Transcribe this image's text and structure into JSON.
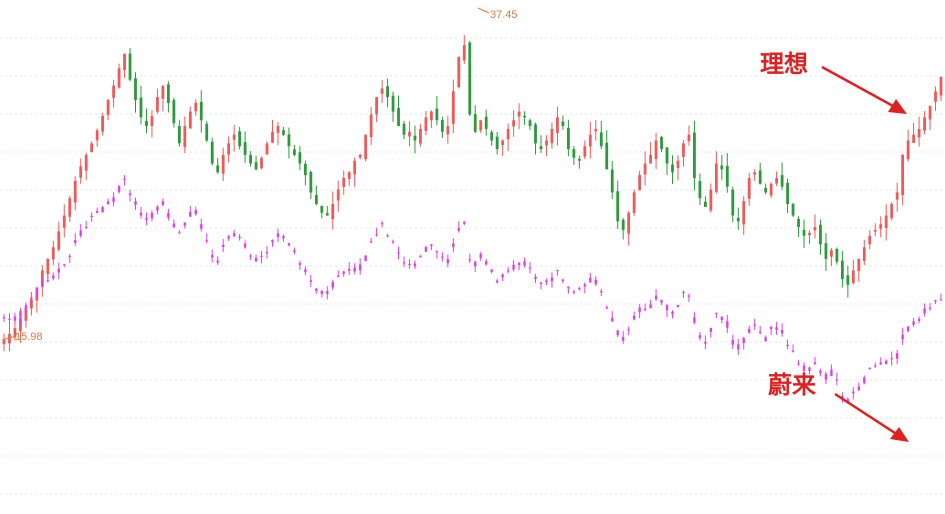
{
  "chart_data": {
    "type": "candlestick",
    "colors": {
      "lixiang_up": "#ee5a5a",
      "lixiang_down": "#2b9a3a",
      "nio": "#e040e8",
      "annotation": "#e02020",
      "price_label": "#e07a40"
    },
    "max_price_label": "37.45",
    "min_price_label": "15.98",
    "annotations": [
      {
        "text": "理想",
        "series": "lixiang"
      },
      {
        "text": "蔚来",
        "series": "nio"
      }
    ],
    "lixiang_closes": [
      16.0,
      16.4,
      16.8,
      17.5,
      18.2,
      18.8,
      19.6,
      20.8,
      21.6,
      22.4,
      23.5,
      24.6,
      25.8,
      27.0,
      28.0,
      28.8,
      29.6,
      30.5,
      31.5,
      32.6,
      33.6,
      34.8,
      35.8,
      34.0,
      32.6,
      31.4,
      30.8,
      31.5,
      32.8,
      33.6,
      32.4,
      31.0,
      29.6,
      30.8,
      31.8,
      32.4,
      31.2,
      29.8,
      28.2,
      27.6,
      28.8,
      29.6,
      30.2,
      29.4,
      28.8,
      28.2,
      27.8,
      28.6,
      29.6,
      30.4,
      30.8,
      30.2,
      29.4,
      28.8,
      28.2,
      27.4,
      26.2,
      25.4,
      24.8,
      24.6,
      25.4,
      26.4,
      27.2,
      27.6,
      28.4,
      28.8,
      30.2,
      31.6,
      32.8,
      33.4,
      32.8,
      31.8,
      30.8,
      30.2,
      30.4,
      29.8,
      30.6,
      31.4,
      31.8,
      31.2,
      30.4,
      30.8,
      33.2,
      35.6,
      36.4,
      31.6,
      30.4,
      31.2,
      30.6,
      29.8,
      29.2,
      29.8,
      30.6,
      31.2,
      31.8,
      31.4,
      30.8,
      29.6,
      29.2,
      29.8,
      30.6,
      31.4,
      30.8,
      29.2,
      28.6,
      28.4,
      29.4,
      30.2,
      30.6,
      29.4,
      27.8,
      26.2,
      24.2,
      23.6,
      24.8,
      26.2,
      27.4,
      28.2,
      28.8,
      29.8,
      29.2,
      28.2,
      27.6,
      28.4,
      29.6,
      30.2,
      27.2,
      25.8,
      25.2,
      26.4,
      28.2,
      27.8,
      26.6,
      24.6,
      24.2,
      25.6,
      27.2,
      27.6,
      26.8,
      26.2,
      26.8,
      27.2,
      26.6,
      25.4,
      24.6,
      23.8,
      23.2,
      23.4,
      23.8,
      22.6,
      21.6,
      22.2,
      21.4,
      20.2,
      19.8,
      20.8,
      21.6,
      22.4,
      23.2,
      23.6,
      24.0,
      24.6,
      25.4,
      26.2,
      28.8,
      29.8,
      30.2,
      30.6,
      31.4,
      32.2,
      33.2,
      34.2
    ]
  }
}
